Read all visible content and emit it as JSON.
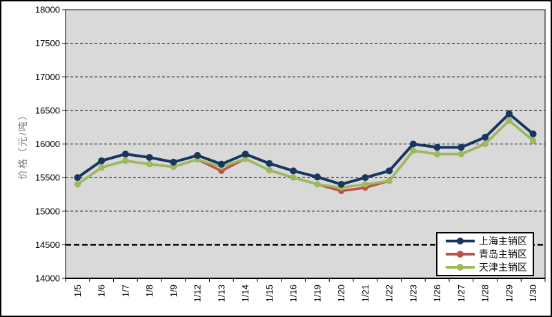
{
  "chart_data": {
    "type": "line",
    "title": "",
    "xlabel": "",
    "ylabel": "价格（元/吨）",
    "ylim": [
      14000,
      18000
    ],
    "ytick_interval": 500,
    "y_ticks": [
      18000,
      17500,
      17000,
      16500,
      16000,
      15500,
      15000,
      14500,
      14000
    ],
    "categories": [
      "1/5",
      "1/6",
      "1/7",
      "1/8",
      "1/9",
      "1/12",
      "1/13",
      "1/14",
      "1/15",
      "1/16",
      "1/19",
      "1/20",
      "1/21",
      "1/22",
      "1/23",
      "1/26",
      "1/27",
      "1/28",
      "1/29",
      "1/30"
    ],
    "series": [
      {
        "name": "上海主销区",
        "color": "#17375E",
        "values": [
          15500,
          15750,
          15850,
          15800,
          15730,
          15830,
          15700,
          15850,
          15710,
          15600,
          15510,
          15400,
          15500,
          15600,
          16000,
          15950,
          15950,
          16100,
          16450,
          16150
        ]
      },
      {
        "name": "青岛主销区",
        "color": "#C0504D",
        "values": [
          15400,
          15650,
          15750,
          15700,
          15660,
          15770,
          15600,
          15780,
          15610,
          15500,
          15400,
          15300,
          15350,
          15450,
          15900,
          15850,
          15850,
          16000,
          16350,
          16050
        ]
      },
      {
        "name": "天津主销区",
        "color": "#9BBB59",
        "values": [
          15400,
          15650,
          15750,
          15700,
          15660,
          15770,
          15660,
          15780,
          15610,
          15500,
          15400,
          15350,
          15400,
          15450,
          15900,
          15850,
          15850,
          16000,
          16350,
          16050
        ]
      }
    ],
    "grid": "dashed",
    "emphasized_gridline": 14500,
    "legend_position": "inside-bottom-right",
    "plot_background": "#D9D9D9",
    "marker": "circle"
  }
}
